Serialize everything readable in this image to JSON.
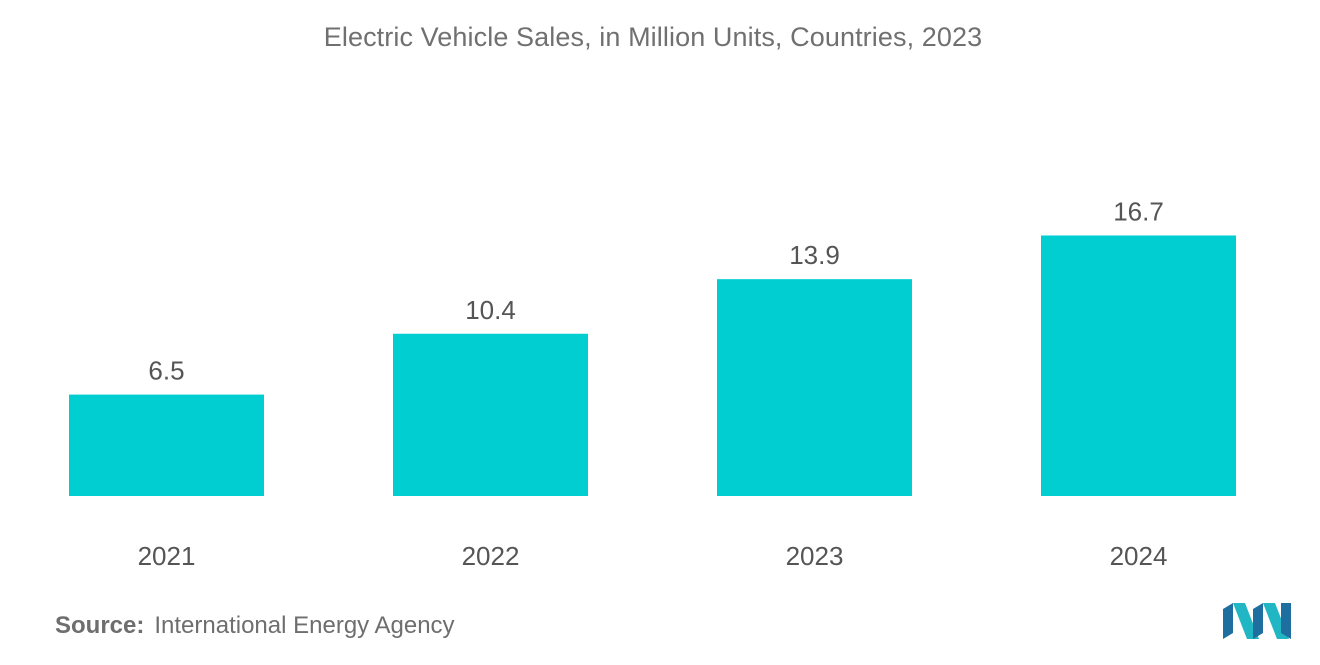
{
  "title": "Electric Vehicle Sales, in Million Units, Countries, 2023",
  "source": {
    "label": "Source:",
    "text": "International Energy Agency"
  },
  "colors": {
    "bar": "#00CED1",
    "text": "#555555",
    "logo_dark": "#1E6F9F",
    "logo_light": "#20B6C4"
  },
  "chart_data": {
    "type": "bar",
    "title": "Electric Vehicle Sales, in Million Units, Countries, 2023",
    "categories": [
      "2021",
      "2022",
      "2023",
      "2024"
    ],
    "values": [
      6.5,
      10.4,
      13.9,
      16.7
    ],
    "data_labels": [
      "6.5",
      "10.4",
      "13.9",
      "16.7"
    ],
    "xlabel": "",
    "ylabel": "",
    "ylim": [
      0,
      20
    ],
    "grid": false,
    "legend": "none"
  }
}
